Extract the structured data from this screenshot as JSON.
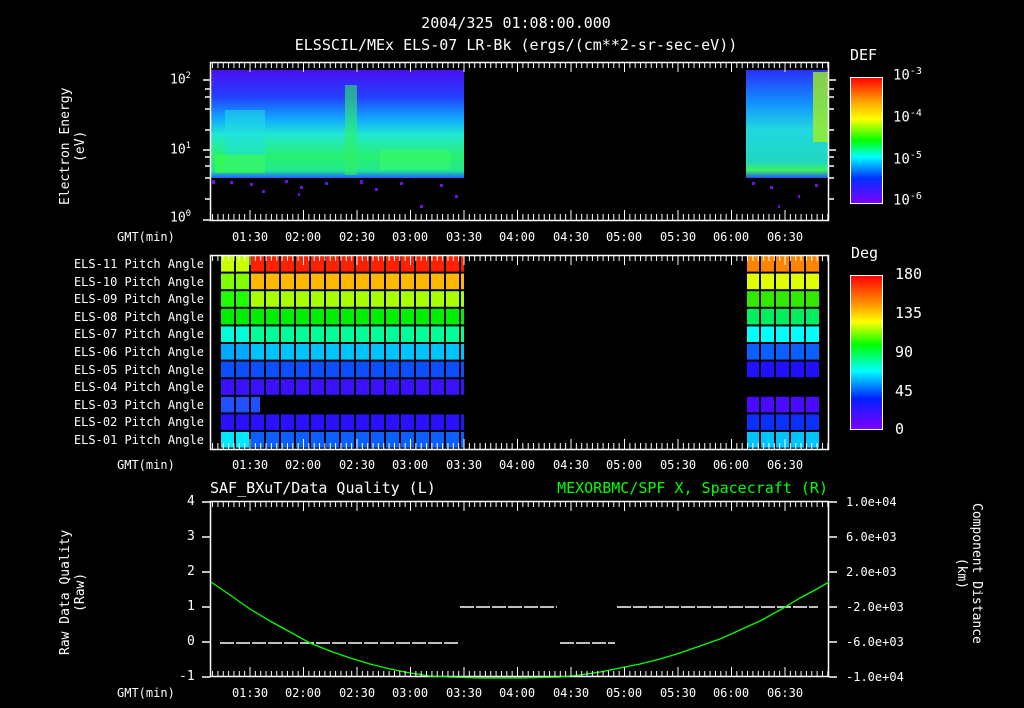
{
  "header": {
    "datetime": "2004/325 01:08:00.000",
    "title": "ELSSCIL/MEx ELS-07 LR-Bk  (ergs/(cm**2-sr-sec-eV))"
  },
  "x_axis": {
    "label": "GMT(min)",
    "ticks": [
      "01:30",
      "02:00",
      "02:30",
      "03:00",
      "03:30",
      "04:00",
      "04:30",
      "05:00",
      "05:30",
      "06:00",
      "06:30"
    ]
  },
  "panel1": {
    "ylabel_line1": "Electron Energy",
    "ylabel_line2": "(eV)",
    "yticks": [
      "10",
      "10",
      "10"
    ],
    "yticks_exp": [
      "0",
      "1",
      "2"
    ],
    "colorbar": {
      "title": "DEF",
      "ticks": [
        "10",
        "10",
        "10",
        "10"
      ],
      "ticks_exp": [
        "-3",
        "-4",
        "-5",
        "-6"
      ]
    }
  },
  "panel2": {
    "rows": [
      "ELS-11 Pitch Angle",
      "ELS-10 Pitch Angle",
      "ELS-09 Pitch Angle",
      "ELS-08 Pitch Angle",
      "ELS-07 Pitch Angle",
      "ELS-06 Pitch Angle",
      "ELS-05 Pitch Angle",
      "ELS-04 Pitch Angle",
      "ELS-03 Pitch Angle",
      "ELS-02 Pitch Angle",
      "ELS-01 Pitch Angle"
    ],
    "colorbar": {
      "title": "Deg",
      "ticks": [
        "180",
        "135",
        "90",
        "45",
        "0"
      ]
    }
  },
  "panel3": {
    "title_left": "SAF_BXuT/Data Quality (L)",
    "title_right": "MEXORBMC/SPF X, Spacecraft (R)",
    "ylabel_left_line1": "Raw Data Quality",
    "ylabel_left_line2": "(Raw)",
    "yticks_left": [
      "4",
      "3",
      "2",
      "1",
      "0",
      "-1"
    ],
    "ylabel_right_line1": "Component Distance",
    "ylabel_right_line2": "(km)",
    "yticks_right": [
      "1.0e+04",
      "6.0e+03",
      "2.0e+03",
      "-2.0e+03",
      "-6.0e+03",
      "-1.0e+04"
    ]
  },
  "colors": {
    "background": "#000000",
    "foreground": "#ffffff",
    "series_right": "#00ff00"
  },
  "chart_data": [
    {
      "type": "heatmap",
      "title": "ELSSCIL/MEx ELS-07 LR-Bk (ergs/(cm**2-sr-sec-eV))",
      "xlabel": "GMT(min)",
      "ylabel": "Electron Energy (eV)",
      "yscale": "log",
      "ylim": [
        1,
        150
      ],
      "xlim": [
        "01:08",
        "06:52"
      ],
      "data_intervals": [
        [
          "01:08",
          "03:30"
        ],
        [
          "06:05",
          "06:52"
        ]
      ],
      "colorbar": {
        "label": "DEF",
        "scale": "log",
        "range": [
          1e-06,
          0.001
        ]
      },
      "notes": "Dominant DEF ~1e-5 to 5e-5 between 4-20 eV; lower cutoff near 4 eV"
    },
    {
      "type": "heatmap",
      "title": "ELS anode pitch angles",
      "xlabel": "GMT(min)",
      "categories": [
        "ELS-11",
        "ELS-10",
        "ELS-09",
        "ELS-08",
        "ELS-07",
        "ELS-06",
        "ELS-05",
        "ELS-04",
        "ELS-03",
        "ELS-02",
        "ELS-01"
      ],
      "colorbar": {
        "label": "Deg",
        "range": [
          0,
          180
        ]
      },
      "interval_1": {
        "range": [
          "01:08",
          "03:30"
        ],
        "approx_deg": [
          170,
          150,
          120,
          100,
          80,
          60,
          40,
          25,
          null,
          20,
          40
        ]
      },
      "interval_2": {
        "range": [
          "06:05",
          "06:52"
        ],
        "approx_deg": [
          155,
          135,
          110,
          95,
          70,
          50,
          30,
          null,
          20,
          35,
          55
        ]
      }
    },
    {
      "type": "line",
      "title_left": "SAF_BXuT/Data Quality (L)",
      "title_right": "MEXORBMC/SPF X, Spacecraft (R)",
      "xlabel": "GMT(min)",
      "series": [
        {
          "name": "Data Quality (L)",
          "axis": "left",
          "segments": [
            {
              "x": [
                "01:12",
                "03:30"
              ],
              "y": 0
            },
            {
              "x": [
                "03:30",
                "04:25"
              ],
              "y": 1
            },
            {
              "x": [
                "04:25",
                "04:45"
              ],
              "y": 0
            },
            {
              "x": [
                "04:45",
                "06:50"
              ],
              "y": 1
            }
          ]
        },
        {
          "name": "SPF X Spacecraft (R)",
          "axis": "right",
          "unit": "km",
          "x": [
            "01:08",
            "01:30",
            "02:00",
            "02:30",
            "03:00",
            "03:30",
            "04:00",
            "04:30",
            "05:00",
            "05:30",
            "06:00",
            "06:30",
            "06:52"
          ],
          "y": [
            3500,
            300,
            -4000,
            -7200,
            -9300,
            -10200,
            -10300,
            -9800,
            -8300,
            -6200,
            -3600,
            -900,
            1600
          ]
        }
      ],
      "ylim_left": [
        -1,
        4
      ],
      "ylim_right": [
        -10000,
        10000
      ]
    }
  ]
}
